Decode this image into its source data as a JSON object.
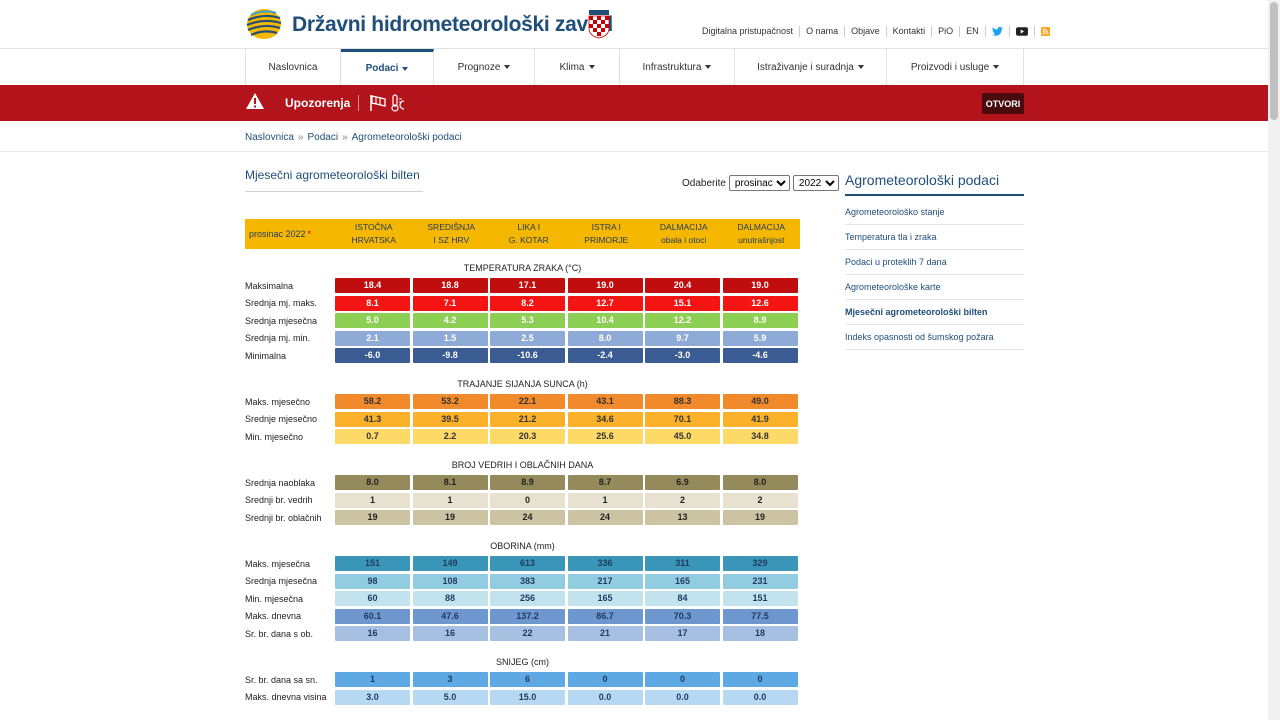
{
  "header": {
    "title": "Državni hidrometeorološki zavod",
    "links": [
      "Digitalna pristupačnost",
      "O nama",
      "Objave",
      "Kontakti",
      "PiO",
      "EN"
    ]
  },
  "nav": {
    "items": [
      {
        "label": "Naslovnica",
        "dropdown": false
      },
      {
        "label": "Podaci",
        "dropdown": true,
        "active": true
      },
      {
        "label": "Prognoze",
        "dropdown": true
      },
      {
        "label": "Klima",
        "dropdown": true
      },
      {
        "label": "Infrastruktura",
        "dropdown": true
      },
      {
        "label": "Istraživanje i suradnja",
        "dropdown": true
      },
      {
        "label": "Proizvodi i usluge",
        "dropdown": true
      }
    ]
  },
  "warning": {
    "label": "Upozorenja",
    "button": "OTVORI",
    "color": "#b3131b"
  },
  "breadcrumb": [
    "Naslovnica",
    "Podaci",
    "Agrometeorološki podaci"
  ],
  "main": {
    "title": "Mjesečni agrometeorološki bilten",
    "picker_label": "Odaberite",
    "month": "prosinac",
    "year": "2022"
  },
  "table": {
    "period": "prosinac 2022",
    "star": "*",
    "columns": [
      [
        "ISTOČNA",
        "HRVATSKA"
      ],
      [
        "SREDIŠNJA",
        "I SZ HRV"
      ],
      [
        "LIKA I",
        "G. KOTAR"
      ],
      [
        "ISTRA I",
        "PRIMORJE"
      ],
      [
        "DALMACIJA",
        "obala i otoci"
      ],
      [
        "DALMACIJA",
        "unutrašnjost"
      ]
    ],
    "sections": [
      {
        "title": "TEMPERATURA ZRAKA (°C)",
        "rows": [
          {
            "label": "Maksimalna",
            "values": [
              "18.4",
              "18.8",
              "17.1",
              "19.0",
              "20.4",
              "19.0"
            ],
            "bg": "#c00d0d",
            "fg": "#ffffff"
          },
          {
            "label": "Srednja mj. maks.",
            "values": [
              "8.1",
              "7.1",
              "8.2",
              "12.7",
              "15.1",
              "12.6"
            ],
            "bg": "#f51414",
            "fg": "#ffffff"
          },
          {
            "label": "Srednja mjesečna",
            "values": [
              "5.0",
              "4.2",
              "5.3",
              "10.4",
              "12.2",
              "8.9"
            ],
            "bg": "#8ccf54",
            "fg": "#ffffff"
          },
          {
            "label": "Srednja mj. min.",
            "values": [
              "2.1",
              "1.5",
              "2.5",
              "8.0",
              "9.7",
              "5.9"
            ],
            "bg": "#8eaad6",
            "fg": "#ffffff"
          },
          {
            "label": "Minimalna",
            "values": [
              "-6.0",
              "-9.8",
              "-10.6",
              "-2.4",
              "-3.0",
              "-4.6"
            ],
            "bg": "#3a5c92",
            "fg": "#ffffff"
          }
        ]
      },
      {
        "title": "TRAJANJE SIJANJA SUNCA (h)",
        "rows": [
          {
            "label": "Maks. mjesečno",
            "values": [
              "58.2",
              "53.2",
              "22.1",
              "43.1",
              "88.3",
              "49.0"
            ],
            "bg": "#f08a2a",
            "fg": "#333333"
          },
          {
            "label": "Srednje mjesečno",
            "values": [
              "41.3",
              "39.5",
              "21.2",
              "34.6",
              "70.1",
              "41.9"
            ],
            "bg": "#fbb12a",
            "fg": "#333333"
          },
          {
            "label": "Min. mjesečno",
            "values": [
              "0.7",
              "2.2",
              "20.3",
              "25.6",
              "45.0",
              "34.8"
            ],
            "bg": "#fdd968",
            "fg": "#333333"
          }
        ]
      },
      {
        "title": "BROJ VEDRIH I OBLAČNIH DANA",
        "rows": [
          {
            "label": "Srednja naoblaka",
            "values": [
              "8.0",
              "8.1",
              "8.9",
              "8.7",
              "6.9",
              "8.0"
            ],
            "bg": "#948a5c",
            "fg": "#222222"
          },
          {
            "label": "Srednji br. vedrih",
            "values": [
              "1",
              "1",
              "0",
              "1",
              "2",
              "2"
            ],
            "bg": "#e6e2cf",
            "fg": "#222222"
          },
          {
            "label": "Srednji br. oblačnih",
            "values": [
              "19",
              "19",
              "24",
              "24",
              "13",
              "19"
            ],
            "bg": "#cbc3a2",
            "fg": "#222222"
          }
        ]
      },
      {
        "title": "OBORINA (mm)",
        "rows": [
          {
            "label": "Maks. mjesečna",
            "values": [
              "151",
              "149",
              "613",
              "336",
              "311",
              "329"
            ],
            "bg": "#3a96b8",
            "fg": "#1f3a5f"
          },
          {
            "label": "Srednja mjesečna",
            "values": [
              "98",
              "108",
              "383",
              "217",
              "165",
              "231"
            ],
            "bg": "#92cce0",
            "fg": "#1f3a5f"
          },
          {
            "label": "Min. mjesečna",
            "values": [
              "60",
              "88",
              "256",
              "165",
              "84",
              "151"
            ],
            "bg": "#c2e2ee",
            "fg": "#1f3a5f"
          },
          {
            "label": "Maks. dnevna",
            "values": [
              "60.1",
              "47.6",
              "137.2",
              "86.7",
              "70.3",
              "77.5"
            ],
            "bg": "#6e97cf",
            "fg": "#1f3a5f"
          },
          {
            "label": "Sr. br. dana s ob.",
            "values": [
              "16",
              "16",
              "22",
              "21",
              "17",
              "18"
            ],
            "bg": "#a7bfe1",
            "fg": "#1f3a5f"
          }
        ]
      },
      {
        "title": "SNIJEG (cm)",
        "rows": [
          {
            "label": "Sr. br. dana sa sn.",
            "values": [
              "1",
              "3",
              "6",
              "0",
              "0",
              "0"
            ],
            "bg": "#5ea9e3",
            "fg": "#1f3a5f"
          },
          {
            "label": "Maks. dnevna visina",
            "values": [
              "3.0",
              "5.0",
              "15.0",
              "0.0",
              "0.0",
              "0.0"
            ],
            "bg": "#b6d8f2",
            "fg": "#1f3a5f"
          }
        ]
      }
    ]
  },
  "sidebar": {
    "title": "Agrometeorološki podaci",
    "items": [
      "Agrometeorološko stanje",
      "Temperatura tla i zraka",
      "Podaci u proteklih 7 dana",
      "Agrometeorološke karte",
      "Mjesečni agrometeorološki bilten",
      "Indeks opasnosti od šumskog požara"
    ],
    "current_index": 4
  }
}
